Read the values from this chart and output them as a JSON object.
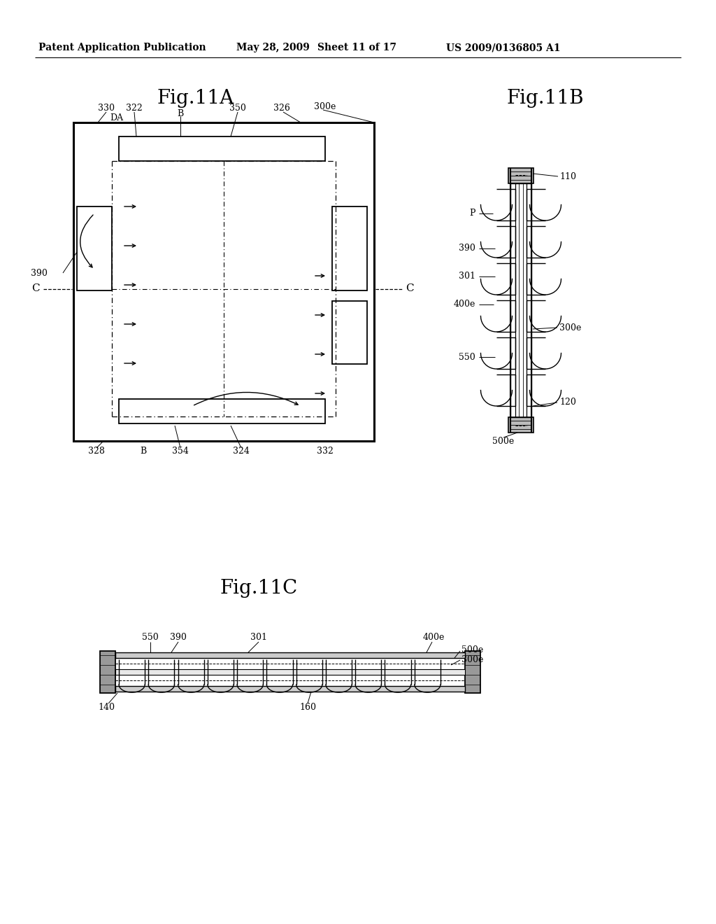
{
  "bg_color": "#ffffff",
  "header_text": "Patent Application Publication",
  "header_date": "May 28, 2009",
  "header_sheet": "Sheet 11 of 17",
  "header_patent": "US 2009/0136805 A1",
  "fig11a_title": "Fig.11A",
  "fig11b_title": "Fig.11B",
  "fig11c_title": "Fig.11C",
  "line_color": "#000000"
}
